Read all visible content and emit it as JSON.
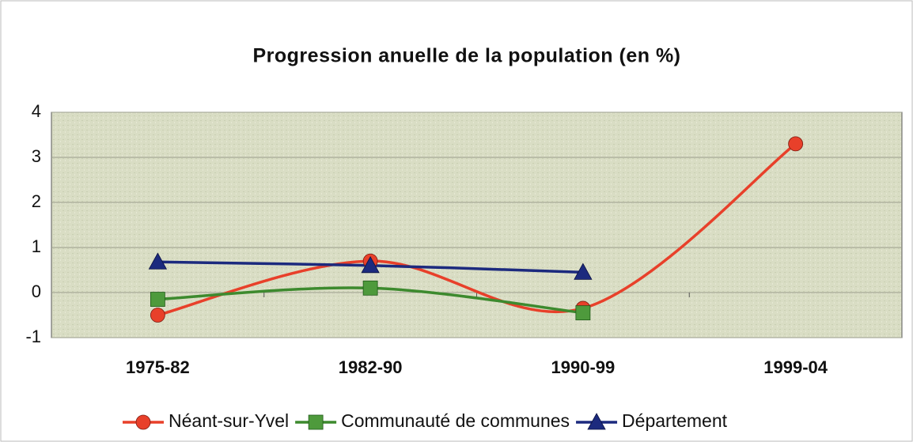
{
  "chart_data": {
    "type": "line",
    "title": "Progression anuelle de la population (en %)",
    "categories": [
      "1975-82",
      "1982-90",
      "1990-99",
      "1999-04"
    ],
    "series": [
      {
        "name": "Néant-sur-Yvel",
        "color": "#e8402a",
        "marker": "circle",
        "values": [
          -0.5,
          0.7,
          -0.35,
          3.3
        ]
      },
      {
        "name": "Communauté de communes",
        "color": "#3d8a2e",
        "marker": "square",
        "values": [
          -0.15,
          0.1,
          -0.45,
          null
        ]
      },
      {
        "name": "Département",
        "color": "#1c2a7e",
        "marker": "triangle",
        "values": [
          0.68,
          0.6,
          0.45,
          null
        ]
      }
    ],
    "ylim": [
      -1,
      4
    ],
    "yticks": [
      -1,
      0,
      1,
      2,
      3,
      4
    ],
    "grid": true,
    "smooth": true,
    "legend": "bottom"
  }
}
